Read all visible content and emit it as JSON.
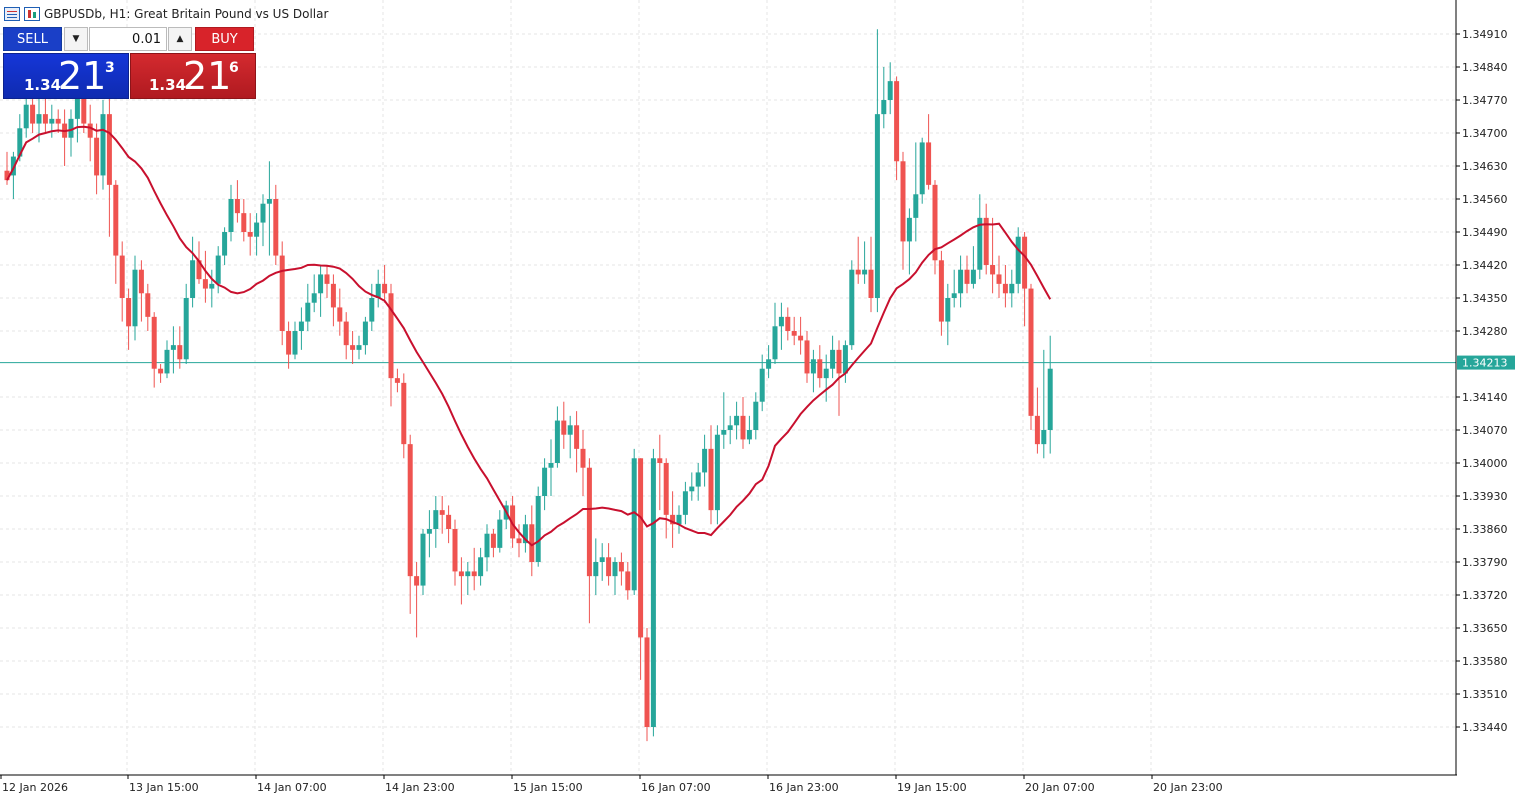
{
  "window": {
    "title": "GBPUSDb, H1:  Great Britain Pound vs US Dollar",
    "icons": [
      "grid-menu-icon",
      "candlestick-icon"
    ]
  },
  "trade_panel": {
    "sell_label": "SELL",
    "buy_label": "BUY",
    "lot_value": "0.01",
    "sell_price": {
      "prefix": "1.34",
      "big": "21",
      "sup": "3"
    },
    "buy_price": {
      "prefix": "1.34",
      "big": "21",
      "sup": "6"
    },
    "colors": {
      "sell": "#1a3fc7",
      "buy": "#d8232a"
    }
  },
  "chart_data": {
    "type": "candlestick",
    "symbol": "GBPUSDb",
    "timeframe": "H1",
    "bull_color": "#26a69a",
    "bear_color": "#ef5350",
    "ma_color": "#c8102e",
    "price_line_color": "#26a69a",
    "current_price_label": "1.34213",
    "current_price": 1.34213,
    "y_range": [
      1.3337,
      1.3497
    ],
    "y_ticks": [
      "1.34910",
      "1.34840",
      "1.34770",
      "1.34700",
      "1.34630",
      "1.34560",
      "1.34490",
      "1.34420",
      "1.34350",
      "1.34280",
      "1.34140",
      "1.34070",
      "1.34000",
      "1.33930",
      "1.33860",
      "1.33790",
      "1.33720",
      "1.33650",
      "1.33580",
      "1.33510",
      "1.33440"
    ],
    "x_labels": [
      "12 Jan 2026",
      "13 Jan 15:00",
      "14 Jan 07:00",
      "14 Jan 23:00",
      "15 Jan 15:00",
      "16 Jan 07:00",
      "16 Jan 23:00",
      "19 Jan 15:00",
      "20 Jan 07:00",
      "20 Jan 23:00"
    ],
    "candles": [
      [
        1.3462,
        1.3466,
        1.3459,
        1.346
      ],
      [
        1.3461,
        1.3466,
        1.3456,
        1.3465
      ],
      [
        1.3465,
        1.3474,
        1.3464,
        1.3471
      ],
      [
        1.3471,
        1.3478,
        1.3469,
        1.3476
      ],
      [
        1.3476,
        1.3479,
        1.347,
        1.3472
      ],
      [
        1.3472,
        1.3478,
        1.3468,
        1.3474
      ],
      [
        1.3474,
        1.3481,
        1.347,
        1.3472
      ],
      [
        1.3472,
        1.3476,
        1.3469,
        1.3473
      ],
      [
        1.3473,
        1.3475,
        1.347,
        1.3472
      ],
      [
        1.3472,
        1.3475,
        1.3463,
        1.3469
      ],
      [
        1.3469,
        1.3475,
        1.3465,
        1.3473
      ],
      [
        1.3473,
        1.3481,
        1.3468,
        1.3478
      ],
      [
        1.3478,
        1.3483,
        1.347,
        1.3472
      ],
      [
        1.3472,
        1.3476,
        1.3464,
        1.3469
      ],
      [
        1.3469,
        1.3472,
        1.3457,
        1.3461
      ],
      [
        1.3461,
        1.3477,
        1.3458,
        1.3474
      ],
      [
        1.3474,
        1.3478,
        1.3448,
        1.3459
      ],
      [
        1.3459,
        1.346,
        1.3438,
        1.3444
      ],
      [
        1.3444,
        1.3447,
        1.343,
        1.3435
      ],
      [
        1.3435,
        1.3437,
        1.3424,
        1.3429
      ],
      [
        1.3429,
        1.3444,
        1.3426,
        1.3441
      ],
      [
        1.3441,
        1.3443,
        1.343,
        1.3436
      ],
      [
        1.3436,
        1.3438,
        1.3428,
        1.3431
      ],
      [
        1.3431,
        1.3432,
        1.3416,
        1.342
      ],
      [
        1.342,
        1.3421,
        1.3417,
        1.3419
      ],
      [
        1.3419,
        1.3426,
        1.3418,
        1.3424
      ],
      [
        1.3424,
        1.3429,
        1.3419,
        1.3425
      ],
      [
        1.3425,
        1.3429,
        1.342,
        1.3422
      ],
      [
        1.3422,
        1.3438,
        1.3421,
        1.3435
      ],
      [
        1.3435,
        1.3448,
        1.3433,
        1.3443
      ],
      [
        1.3443,
        1.3447,
        1.3438,
        1.3439
      ],
      [
        1.3439,
        1.3445,
        1.3434,
        1.3437
      ],
      [
        1.3437,
        1.3441,
        1.3433,
        1.3438
      ],
      [
        1.3438,
        1.3446,
        1.3436,
        1.3444
      ],
      [
        1.3444,
        1.345,
        1.3442,
        1.3449
      ],
      [
        1.3449,
        1.3459,
        1.3447,
        1.3456
      ],
      [
        1.3456,
        1.346,
        1.3451,
        1.3453
      ],
      [
        1.3453,
        1.3456,
        1.3447,
        1.3449
      ],
      [
        1.3449,
        1.3453,
        1.3444,
        1.3448
      ],
      [
        1.3448,
        1.3453,
        1.3444,
        1.3451
      ],
      [
        1.3451,
        1.3457,
        1.3446,
        1.3455
      ],
      [
        1.3455,
        1.3464,
        1.3444,
        1.3456
      ],
      [
        1.3456,
        1.3459,
        1.3442,
        1.3444
      ],
      [
        1.3444,
        1.3447,
        1.3425,
        1.3428
      ],
      [
        1.3428,
        1.343,
        1.342,
        1.3423
      ],
      [
        1.3423,
        1.343,
        1.3422,
        1.3428
      ],
      [
        1.3428,
        1.3433,
        1.3424,
        1.343
      ],
      [
        1.343,
        1.3438,
        1.3428,
        1.3434
      ],
      [
        1.3434,
        1.344,
        1.3432,
        1.3436
      ],
      [
        1.3436,
        1.3442,
        1.3431,
        1.344
      ],
      [
        1.344,
        1.3442,
        1.3435,
        1.3438
      ],
      [
        1.3438,
        1.344,
        1.3429,
        1.3433
      ],
      [
        1.3433,
        1.3437,
        1.3427,
        1.343
      ],
      [
        1.343,
        1.3432,
        1.3422,
        1.3425
      ],
      [
        1.3425,
        1.3428,
        1.3421,
        1.3424
      ],
      [
        1.3424,
        1.3427,
        1.3422,
        1.3425
      ],
      [
        1.3425,
        1.3431,
        1.3423,
        1.343
      ],
      [
        1.343,
        1.3438,
        1.3428,
        1.3435
      ],
      [
        1.3435,
        1.3441,
        1.3433,
        1.3438
      ],
      [
        1.3438,
        1.3442,
        1.3434,
        1.3436
      ],
      [
        1.3436,
        1.3438,
        1.3412,
        1.3418
      ],
      [
        1.3418,
        1.342,
        1.3415,
        1.3417
      ],
      [
        1.3417,
        1.3419,
        1.3401,
        1.3404
      ],
      [
        1.3404,
        1.3406,
        1.3368,
        1.3376
      ],
      [
        1.3376,
        1.3379,
        1.3363,
        1.3374
      ],
      [
        1.3374,
        1.3386,
        1.3372,
        1.3385
      ],
      [
        1.3385,
        1.339,
        1.338,
        1.3386
      ],
      [
        1.3386,
        1.3393,
        1.3382,
        1.339
      ],
      [
        1.339,
        1.3393,
        1.3385,
        1.3389
      ],
      [
        1.3389,
        1.3391,
        1.3383,
        1.3386
      ],
      [
        1.3386,
        1.3388,
        1.3374,
        1.3377
      ],
      [
        1.3377,
        1.338,
        1.337,
        1.3376
      ],
      [
        1.3376,
        1.3379,
        1.3372,
        1.3377
      ],
      [
        1.3377,
        1.3382,
        1.3373,
        1.3376
      ],
      [
        1.3376,
        1.3382,
        1.3374,
        1.338
      ],
      [
        1.338,
        1.3387,
        1.3377,
        1.3385
      ],
      [
        1.3385,
        1.3386,
        1.338,
        1.3382
      ],
      [
        1.3382,
        1.339,
        1.3381,
        1.3388
      ],
      [
        1.3388,
        1.3392,
        1.3386,
        1.3391
      ],
      [
        1.3391,
        1.3393,
        1.3382,
        1.3384
      ],
      [
        1.3384,
        1.3387,
        1.338,
        1.3383
      ],
      [
        1.3383,
        1.3389,
        1.3381,
        1.3387
      ],
      [
        1.3387,
        1.3391,
        1.3376,
        1.3379
      ],
      [
        1.3379,
        1.3395,
        1.3378,
        1.3393
      ],
      [
        1.3393,
        1.3401,
        1.339,
        1.3399
      ],
      [
        1.3399,
        1.3405,
        1.3393,
        1.34
      ],
      [
        1.34,
        1.3412,
        1.3399,
        1.3409
      ],
      [
        1.3409,
        1.3413,
        1.3403,
        1.3406
      ],
      [
        1.3406,
        1.341,
        1.3401,
        1.3408
      ],
      [
        1.3408,
        1.3411,
        1.3398,
        1.3403
      ],
      [
        1.3403,
        1.3407,
        1.3393,
        1.3399
      ],
      [
        1.3399,
        1.3401,
        1.3366,
        1.3376
      ],
      [
        1.3376,
        1.3384,
        1.3372,
        1.3379
      ],
      [
        1.3379,
        1.3383,
        1.3375,
        1.338
      ],
      [
        1.338,
        1.3383,
        1.3374,
        1.3376
      ],
      [
        1.3376,
        1.338,
        1.3372,
        1.3379
      ],
      [
        1.3379,
        1.3381,
        1.3374,
        1.3377
      ],
      [
        1.3377,
        1.3379,
        1.3371,
        1.3373
      ],
      [
        1.3373,
        1.3403,
        1.3372,
        1.3401
      ],
      [
        1.3401,
        1.3401,
        1.3354,
        1.3363
      ],
      [
        1.3363,
        1.3365,
        1.3341,
        1.3344
      ],
      [
        1.3344,
        1.3403,
        1.3342,
        1.3401
      ],
      [
        1.3401,
        1.3406,
        1.339,
        1.34
      ],
      [
        1.34,
        1.3401,
        1.3384,
        1.3389
      ],
      [
        1.3389,
        1.3394,
        1.3382,
        1.3387
      ],
      [
        1.3387,
        1.3391,
        1.3385,
        1.3389
      ],
      [
        1.3389,
        1.3396,
        1.3387,
        1.3394
      ],
      [
        1.3394,
        1.3398,
        1.3392,
        1.3395
      ],
      [
        1.3395,
        1.34,
        1.3392,
        1.3398
      ],
      [
        1.3398,
        1.3406,
        1.3395,
        1.3403
      ],
      [
        1.3403,
        1.3408,
        1.3387,
        1.339
      ],
      [
        1.339,
        1.3408,
        1.3387,
        1.3406
      ],
      [
        1.3406,
        1.3415,
        1.3403,
        1.3407
      ],
      [
        1.3407,
        1.341,
        1.3404,
        1.3408
      ],
      [
        1.3408,
        1.3413,
        1.3405,
        1.341
      ],
      [
        1.341,
        1.3414,
        1.3403,
        1.3405
      ],
      [
        1.3405,
        1.341,
        1.3404,
        1.3407
      ],
      [
        1.3407,
        1.3415,
        1.3405,
        1.3413
      ],
      [
        1.3413,
        1.3423,
        1.3411,
        1.342
      ],
      [
        1.342,
        1.3425,
        1.3418,
        1.3422
      ],
      [
        1.3422,
        1.3434,
        1.3421,
        1.3429
      ],
      [
        1.3429,
        1.3434,
        1.3424,
        1.3431
      ],
      [
        1.3431,
        1.3433,
        1.3426,
        1.3428
      ],
      [
        1.3428,
        1.3431,
        1.3425,
        1.3427
      ],
      [
        1.3427,
        1.3431,
        1.3423,
        1.3426
      ],
      [
        1.3426,
        1.3428,
        1.3417,
        1.3419
      ],
      [
        1.3419,
        1.3424,
        1.3415,
        1.3422
      ],
      [
        1.3422,
        1.3425,
        1.3416,
        1.3418
      ],
      [
        1.3418,
        1.3423,
        1.3413,
        1.342
      ],
      [
        1.342,
        1.3427,
        1.3418,
        1.3424
      ],
      [
        1.3424,
        1.3426,
        1.341,
        1.3419
      ],
      [
        1.3419,
        1.3426,
        1.3417,
        1.3425
      ],
      [
        1.3425,
        1.3443,
        1.3424,
        1.3441
      ],
      [
        1.3441,
        1.3448,
        1.3438,
        1.344
      ],
      [
        1.344,
        1.3447,
        1.3438,
        1.3441
      ],
      [
        1.3441,
        1.3448,
        1.3432,
        1.3435
      ],
      [
        1.3435,
        1.3492,
        1.3432,
        1.3474
      ],
      [
        1.3474,
        1.3484,
        1.3471,
        1.3477
      ],
      [
        1.3477,
        1.3485,
        1.3474,
        1.3481
      ],
      [
        1.3481,
        1.3482,
        1.346,
        1.3464
      ],
      [
        1.3464,
        1.3466,
        1.3441,
        1.3447
      ],
      [
        1.3447,
        1.3454,
        1.344,
        1.3452
      ],
      [
        1.3452,
        1.3468,
        1.3447,
        1.3457
      ],
      [
        1.3457,
        1.3469,
        1.3455,
        1.3468
      ],
      [
        1.3468,
        1.3474,
        1.3458,
        1.3459
      ],
      [
        1.3459,
        1.346,
        1.344,
        1.3443
      ],
      [
        1.3443,
        1.3445,
        1.3427,
        1.343
      ],
      [
        1.343,
        1.3438,
        1.3425,
        1.3435
      ],
      [
        1.3435,
        1.3441,
        1.3433,
        1.3436
      ],
      [
        1.3436,
        1.3444,
        1.3433,
        1.3441
      ],
      [
        1.3441,
        1.3444,
        1.3436,
        1.3438
      ],
      [
        1.3438,
        1.3446,
        1.3437,
        1.3441
      ],
      [
        1.3441,
        1.3457,
        1.3439,
        1.3452
      ],
      [
        1.3452,
        1.3455,
        1.344,
        1.3442
      ],
      [
        1.3442,
        1.3452,
        1.3436,
        1.344
      ],
      [
        1.344,
        1.3444,
        1.3435,
        1.3438
      ],
      [
        1.3438,
        1.3442,
        1.3433,
        1.3436
      ],
      [
        1.3436,
        1.3441,
        1.3433,
        1.3438
      ],
      [
        1.3438,
        1.345,
        1.3436,
        1.3448
      ],
      [
        1.3448,
        1.3449,
        1.3429,
        1.3437
      ],
      [
        1.3437,
        1.3438,
        1.3407,
        1.341
      ],
      [
        1.341,
        1.3416,
        1.3402,
        1.3404
      ],
      [
        1.3404,
        1.3424,
        1.3401,
        1.3407
      ],
      [
        1.3407,
        1.3427,
        1.3402,
        1.342
      ]
    ]
  }
}
